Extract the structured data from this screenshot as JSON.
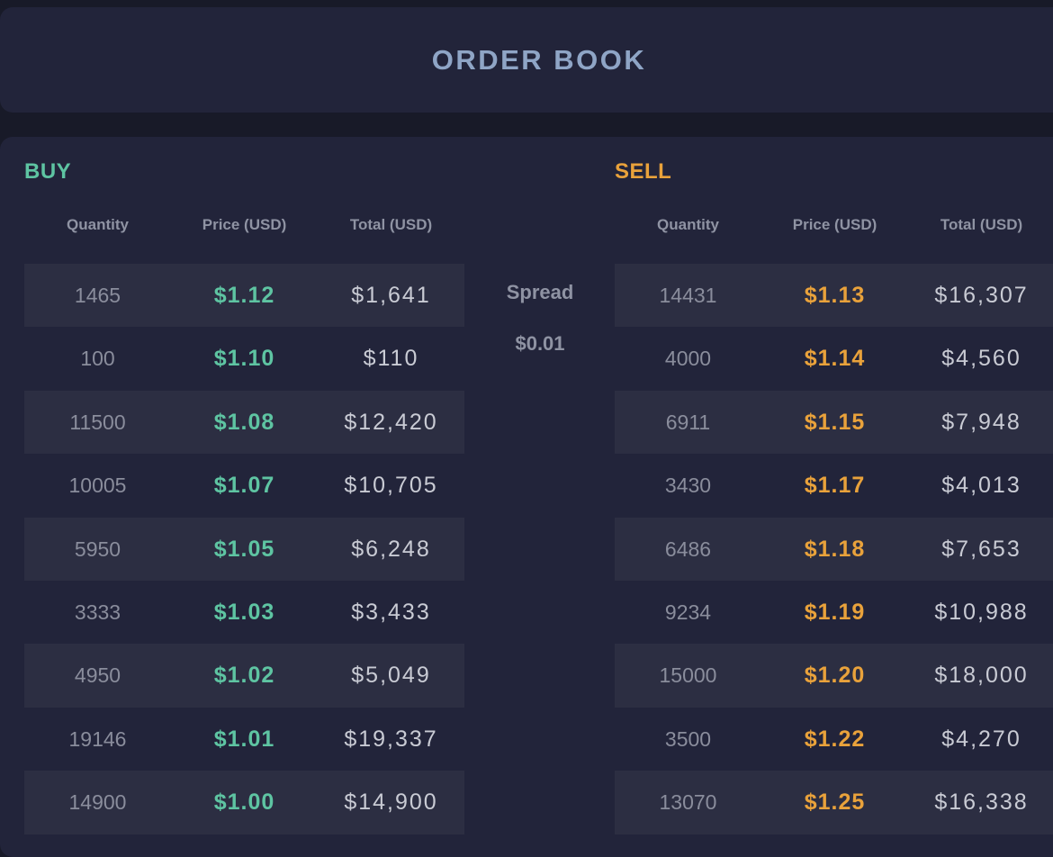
{
  "header": {
    "title": "ORDER BOOK"
  },
  "buy": {
    "title": "BUY",
    "columns": [
      "Quantity",
      "Price (USD)",
      "Total (USD)"
    ],
    "rows": [
      {
        "quantity": "1465",
        "price": "$1.12",
        "total": "$1,641"
      },
      {
        "quantity": "100",
        "price": "$1.10",
        "total": "$110"
      },
      {
        "quantity": "11500",
        "price": "$1.08",
        "total": "$12,420"
      },
      {
        "quantity": "10005",
        "price": "$1.07",
        "total": "$10,705"
      },
      {
        "quantity": "5950",
        "price": "$1.05",
        "total": "$6,248"
      },
      {
        "quantity": "3333",
        "price": "$1.03",
        "total": "$3,433"
      },
      {
        "quantity": "4950",
        "price": "$1.02",
        "total": "$5,049"
      },
      {
        "quantity": "19146",
        "price": "$1.01",
        "total": "$19,337"
      },
      {
        "quantity": "14900",
        "price": "$1.00",
        "total": "$14,900"
      }
    ]
  },
  "sell": {
    "title": "SELL",
    "columns": [
      "Quantity",
      "Price (USD)",
      "Total (USD)"
    ],
    "rows": [
      {
        "quantity": "14431",
        "price": "$1.13",
        "total": "$16,307"
      },
      {
        "quantity": "4000",
        "price": "$1.14",
        "total": "$4,560"
      },
      {
        "quantity": "6911",
        "price": "$1.15",
        "total": "$7,948"
      },
      {
        "quantity": "3430",
        "price": "$1.17",
        "total": "$4,013"
      },
      {
        "quantity": "6486",
        "price": "$1.18",
        "total": "$7,653"
      },
      {
        "quantity": "9234",
        "price": "$1.19",
        "total": "$10,988"
      },
      {
        "quantity": "15000",
        "price": "$1.20",
        "total": "$18,000"
      },
      {
        "quantity": "3500",
        "price": "$1.22",
        "total": "$4,270"
      },
      {
        "quantity": "13070",
        "price": "$1.25",
        "total": "$16,338"
      }
    ]
  },
  "spread": {
    "label": "Spread",
    "value": "$0.01"
  },
  "colors": {
    "buy_accent": "#5ec4a2",
    "sell_accent": "#e9a23b",
    "header_text": "#8fa5c6",
    "card_bg": "#22243a",
    "row_shade": "#2c2e42",
    "page_bg": "#181a28"
  }
}
